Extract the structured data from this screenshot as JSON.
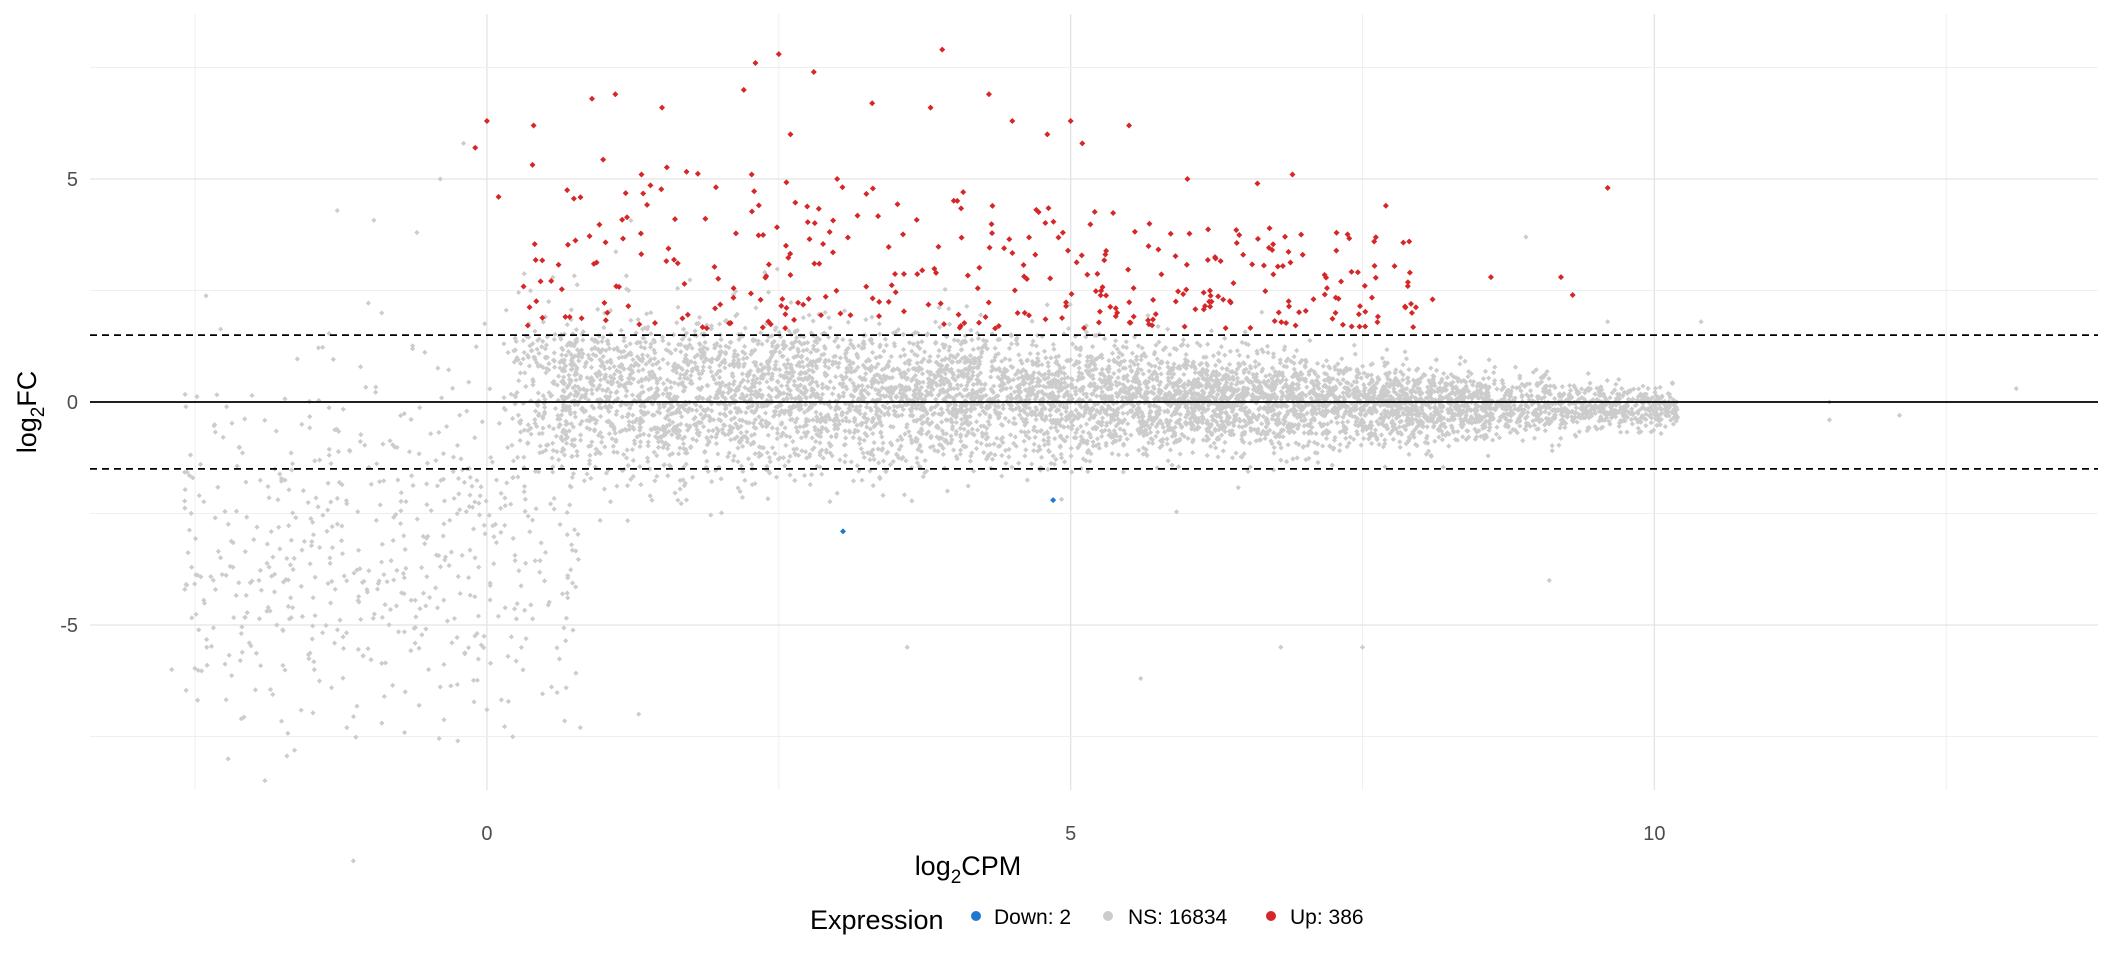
{
  "chart_data": {
    "type": "scatter",
    "title": "",
    "xlabel_base": "log",
    "xlabel_sub": "2",
    "xlabel_rest": "CPM",
    "ylabel_base": "log",
    "ylabel_sub": "2",
    "ylabel_rest": "FC",
    "xlim": [
      -3.4,
      13.8
    ],
    "ylim": [
      -8.7,
      8.7
    ],
    "x_ticks": [
      0,
      5,
      10
    ],
    "x_tick_labels": [
      "0",
      "5",
      "10"
    ],
    "y_ticks": [
      -5,
      0,
      5
    ],
    "y_tick_labels": [
      "-5",
      "0",
      "5"
    ],
    "grid": true,
    "reference_lines": [
      {
        "y": 0,
        "style": "solid"
      },
      {
        "y": 1.5,
        "style": "dashed"
      },
      {
        "y": -1.5,
        "style": "dashed"
      }
    ],
    "legend": {
      "title": "Expression",
      "placement": "bottom",
      "entries": [
        {
          "label": "Down: 2",
          "color": "#1f78d1"
        },
        {
          "label": "NS: 16834",
          "color": "#cccccc"
        },
        {
          "label": "Up: 386",
          "color": "#d62728"
        }
      ]
    },
    "series": [
      {
        "name": "Down",
        "count": 2,
        "color": "#1f78d1",
        "points": [
          [
            3.05,
            -2.9
          ],
          [
            4.85,
            -2.2
          ]
        ]
      },
      {
        "name": "NS",
        "count": 16834,
        "color": "#cccccc",
        "points": [
          [
            -2.7,
            -6.0
          ],
          [
            -2.4,
            -5.5
          ],
          [
            -1.8,
            -5.0
          ],
          [
            -1.3,
            -4.2
          ],
          [
            -1.2,
            -7.3
          ],
          [
            -0.9,
            -7.2
          ],
          [
            -0.7,
            -6.5
          ],
          [
            -0.5,
            -6.0
          ],
          [
            -0.3,
            -5.4
          ],
          [
            0.0,
            -6.9
          ],
          [
            0.8,
            -7.3
          ],
          [
            1.3,
            -7.0
          ],
          [
            3.6,
            -5.5
          ],
          [
            5.6,
            -6.2
          ],
          [
            6.8,
            -5.5
          ],
          [
            7.5,
            -5.5
          ],
          [
            9.1,
            -4.0
          ],
          [
            -0.6,
            3.8
          ],
          [
            -0.4,
            5.0
          ],
          [
            -0.2,
            5.8
          ],
          [
            8.9,
            3.7
          ],
          [
            9.6,
            1.8
          ],
          [
            10.4,
            1.8
          ],
          [
            11.5,
            0.0
          ],
          [
            11.5,
            -0.4
          ],
          [
            12.1,
            -0.3
          ],
          [
            13.1,
            0.3
          ]
        ],
        "note_cloud": {
          "x_range": [
            0.2,
            10.2
          ],
          "y_spread_at_low_cpm": 4.0,
          "y_spread_at_high_cpm": 0.8,
          "center": -0.15
        }
      },
      {
        "name": "Up",
        "count": 386,
        "color": "#d62728",
        "points": [
          [
            -0.1,
            5.7
          ],
          [
            0.0,
            6.3
          ],
          [
            0.1,
            4.6
          ],
          [
            0.4,
            6.2
          ],
          [
            0.9,
            6.8
          ],
          [
            1.1,
            6.9
          ],
          [
            1.5,
            6.6
          ],
          [
            2.2,
            7.0
          ],
          [
            2.3,
            7.6
          ],
          [
            2.5,
            7.8
          ],
          [
            2.6,
            6.0
          ],
          [
            2.8,
            7.4
          ],
          [
            3.0,
            5.0
          ],
          [
            3.3,
            6.7
          ],
          [
            3.8,
            6.6
          ],
          [
            3.9,
            7.9
          ],
          [
            4.3,
            6.9
          ],
          [
            4.5,
            6.3
          ],
          [
            4.8,
            6.0
          ],
          [
            5.0,
            6.3
          ],
          [
            5.1,
            5.8
          ],
          [
            5.5,
            6.2
          ],
          [
            6.0,
            5.0
          ],
          [
            6.6,
            4.9
          ],
          [
            6.9,
            5.1
          ],
          [
            7.6,
            3.6
          ],
          [
            7.7,
            4.4
          ],
          [
            7.9,
            3.6
          ],
          [
            8.1,
            2.3
          ],
          [
            8.6,
            2.8
          ],
          [
            9.2,
            2.8
          ],
          [
            9.3,
            2.4
          ],
          [
            9.6,
            4.8
          ]
        ],
        "note_cloud": {
          "x_range": [
            0.3,
            8.0
          ],
          "y_range": [
            1.55,
            5.5
          ]
        }
      }
    ]
  }
}
